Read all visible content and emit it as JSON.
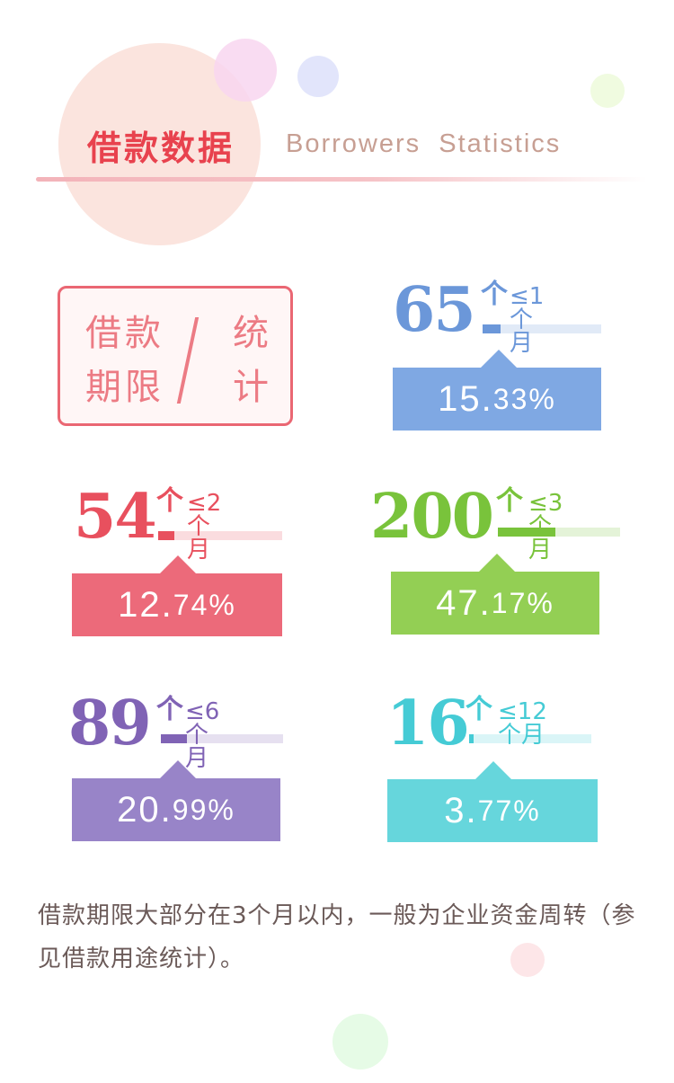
{
  "header": {
    "title_cn": "借款数据",
    "title_en": "Borrowers  Statistics"
  },
  "label_box": {
    "line1_left": "借款",
    "line2_left": "期限",
    "line1_right": "统",
    "line2_right": "计"
  },
  "stats": [
    {
      "count": "65",
      "unit": "个",
      "range": "≤1个月",
      "pct_int": "15.",
      "pct_dec": "33%",
      "share": 0.1533,
      "color": "#6b97d9",
      "box_color": "#7fa8e3"
    },
    {
      "count": "54",
      "unit": "个",
      "range": "≤2个月",
      "pct_int": "12.",
      "pct_dec": "74%",
      "share": 0.1274,
      "color": "#e8505e",
      "box_color": "#ec6a7a"
    },
    {
      "count": "200",
      "unit": "个",
      "range": "≤3个月",
      "pct_int": "47.",
      "pct_dec": "17%",
      "share": 0.4717,
      "color": "#79c33b",
      "box_color": "#93cf54"
    },
    {
      "count": "89",
      "unit": "个",
      "range": "≤6个月",
      "pct_int": "20.",
      "pct_dec": "99%",
      "share": 0.2099,
      "color": "#8063b5",
      "box_color": "#9884c8"
    },
    {
      "count": "16",
      "unit": "个",
      "range": "≤12个月",
      "pct_int": "3.",
      "pct_dec": "77%",
      "share": 0.0377,
      "color": "#45cbd5",
      "box_color": "#66d6dc"
    }
  ],
  "description": "借款期限大部分在3个月以内，一般为企业资金周转（参见借款用途统计）。"
}
